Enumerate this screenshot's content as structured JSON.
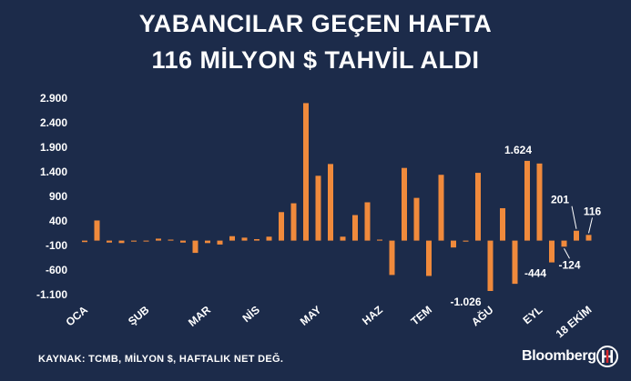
{
  "header": {
    "title_line1": "YABANCILAR GEÇEN HAFTA",
    "title_line2": "116 MİLYON $ TAHVİL ALDI"
  },
  "footer": {
    "source": "KAYNAK: TCMB, MİLYON $, HAFTALIK NET DEĞ.",
    "brand": "Bloomberg",
    "logo_icon": "ht-logo-icon"
  },
  "chart_data": {
    "type": "bar",
    "title": "YABANCILAR GEÇEN HAFTA 116 MİLYON $ TAHVİL ALDI",
    "ylim": [
      -1100,
      2900
    ],
    "yticks": [
      2900,
      2400,
      1900,
      1400,
      900,
      400,
      -100,
      -600,
      -1100
    ],
    "ytick_labels": [
      "2.900",
      "2.400",
      "1.900",
      "1.400",
      "900",
      "400",
      "-100",
      "-600",
      "-1.100"
    ],
    "grid": false,
    "bar_color": "#f08a3c",
    "month_labels": [
      {
        "label": "OCA",
        "index": 0
      },
      {
        "label": "ŞUB",
        "index": 5
      },
      {
        "label": "MAR",
        "index": 10
      },
      {
        "label": "NİS",
        "index": 14
      },
      {
        "label": "MAY",
        "index": 19
      },
      {
        "label": "HAZ",
        "index": 24
      },
      {
        "label": "TEM",
        "index": 28
      },
      {
        "label": "AĞU",
        "index": 33
      },
      {
        "label": "EYL",
        "index": 37
      },
      {
        "label": "18 EKİM",
        "index": 41
      }
    ],
    "values": [
      -30,
      410,
      -40,
      -50,
      -20,
      -10,
      40,
      20,
      -40,
      -250,
      -50,
      -80,
      90,
      60,
      30,
      80,
      580,
      760,
      2800,
      1320,
      1560,
      80,
      520,
      780,
      20,
      -700,
      1480,
      870,
      -720,
      1340,
      -140,
      -20,
      1380,
      -1026,
      660,
      -880,
      1624,
      1570,
      -444,
      -124,
      201,
      116
    ],
    "annotations": [
      {
        "index": 36,
        "text": "1.624"
      },
      {
        "index": 33,
        "text": "-1.026"
      },
      {
        "index": 38,
        "text": "-444"
      },
      {
        "index": 39,
        "text": "-124"
      },
      {
        "index": 40,
        "text": "201"
      },
      {
        "index": 41,
        "text": "116"
      }
    ]
  }
}
